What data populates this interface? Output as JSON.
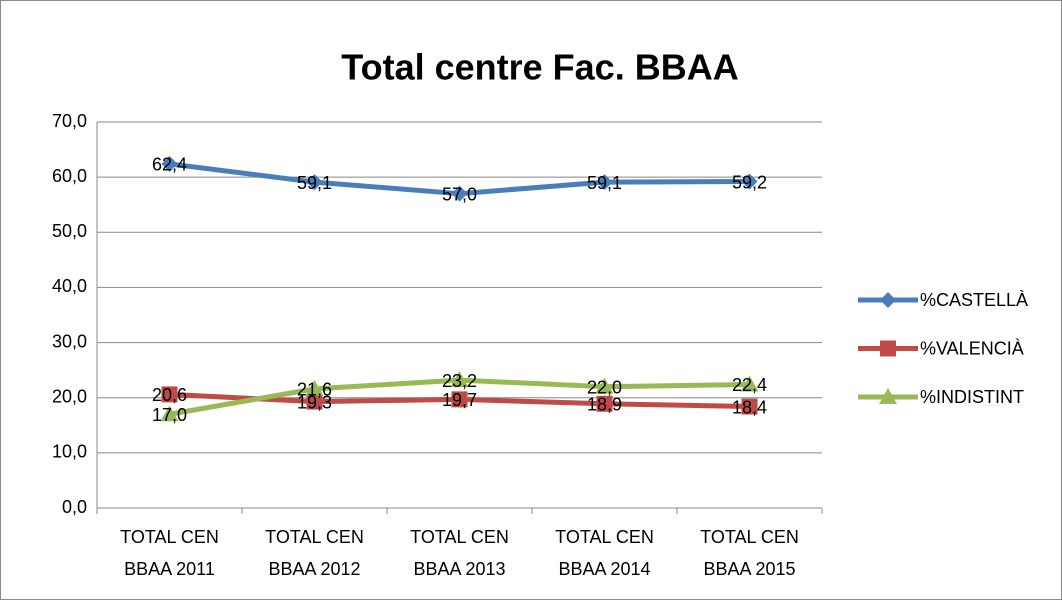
{
  "chart_data": {
    "type": "line",
    "title": "Total centre Fac. BBAA",
    "categories": [
      "TOTAL CEN BBAA 2011",
      "TOTAL CEN BBAA 2012",
      "TOTAL CEN BBAA 2013",
      "TOTAL CEN BBAA 2014",
      "TOTAL CEN BBAA 2015"
    ],
    "series": [
      {
        "name": "%CASTELLÀ",
        "color": "#4a7ebb",
        "marker": "diamond",
        "values": [
          62.4,
          59.1,
          57.0,
          59.1,
          59.2
        ],
        "value_labels": [
          "62,4",
          "59,1",
          "57,0",
          "59,1",
          "59,2"
        ]
      },
      {
        "name": "%VALENCIÀ",
        "color": "#be4b48",
        "marker": "square",
        "values": [
          20.6,
          19.3,
          19.7,
          18.9,
          18.4
        ],
        "value_labels": [
          "20,6",
          "19,3",
          "19,7",
          "18,9",
          "18,4"
        ]
      },
      {
        "name": "%INDISTINT",
        "color": "#98b954",
        "marker": "triangle",
        "values": [
          17.0,
          21.6,
          23.2,
          22.0,
          22.4
        ],
        "value_labels": [
          "17,0",
          "21,6",
          "23,2",
          "22,0",
          "22,4"
        ]
      }
    ],
    "ylim": [
      0,
      70
    ],
    "yticks": [
      {
        "value": 0,
        "label": "0,0"
      },
      {
        "value": 10,
        "label": "10,0"
      },
      {
        "value": 20,
        "label": "20,0"
      },
      {
        "value": 30,
        "label": "30,0"
      },
      {
        "value": 40,
        "label": "40,0"
      },
      {
        "value": 50,
        "label": "50,0"
      },
      {
        "value": 60,
        "label": "60,0"
      },
      {
        "value": 70,
        "label": "70,0"
      }
    ],
    "grid": true,
    "legend": "right"
  }
}
